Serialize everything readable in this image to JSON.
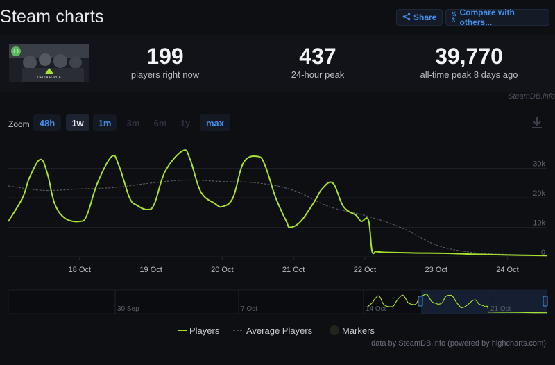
{
  "page": {
    "title": "Steam charts"
  },
  "toolbar": {
    "share_label": "Share",
    "compare_label": "Compare with others..."
  },
  "stats": {
    "current": {
      "value": "199",
      "label": "players right now"
    },
    "peak24": {
      "value": "437",
      "label": "24-hour peak"
    },
    "alltime": {
      "value": "39,770",
      "label": "all-time peak 8 days ago"
    }
  },
  "capsule": {
    "game_name": "DELTA FORCE"
  },
  "watermark": "SteamDB.info",
  "zoom": {
    "label": "Zoom",
    "options": [
      {
        "label": "48h",
        "state": "link"
      },
      {
        "label": "1w",
        "state": "selected"
      },
      {
        "label": "1m",
        "state": "link"
      },
      {
        "label": "3m",
        "state": "disabled"
      },
      {
        "label": "6m",
        "state": "disabled"
      },
      {
        "label": "1y",
        "state": "disabled"
      },
      {
        "label": "max",
        "state": "link"
      }
    ]
  },
  "legend": {
    "players": "Players",
    "average": "Average Players",
    "markers": "Markers"
  },
  "credit": "data by SteamDB.info (powered by highcharts.com)",
  "colors": {
    "players": "#a6e22e",
    "average": "#555a63",
    "accent": "#3f8fe8",
    "background": "#0e0f13"
  },
  "chart_data": {
    "type": "line",
    "title": "",
    "xlabel": "",
    "ylabel": "",
    "x_unit": "days since 17 Oct 00:00",
    "xlim": [
      0,
      7.55
    ],
    "ylim": [
      0,
      40000
    ],
    "x_ticks": [
      {
        "label": "18 Oct",
        "x": 1
      },
      {
        "label": "19 Oct",
        "x": 2
      },
      {
        "label": "20 Oct",
        "x": 3
      },
      {
        "label": "21 Oct",
        "x": 4
      },
      {
        "label": "22 Oct",
        "x": 5
      },
      {
        "label": "23 Oct",
        "x": 6
      },
      {
        "label": "24 Oct",
        "x": 7
      }
    ],
    "y_ticks": [
      {
        "label": "0",
        "y": 0
      },
      {
        "label": "10k",
        "y": 10000
      },
      {
        "label": "20k",
        "y": 20000
      },
      {
        "label": "30k",
        "y": 30000
      }
    ],
    "series": [
      {
        "name": "Players",
        "x": [
          0,
          0.2,
          0.3,
          0.45,
          0.55,
          0.65,
          0.8,
          1.0,
          1.1,
          1.25,
          1.45,
          1.55,
          1.7,
          1.8,
          1.95,
          2.05,
          2.2,
          2.45,
          2.55,
          2.7,
          2.9,
          3.0,
          3.15,
          3.3,
          3.5,
          3.6,
          3.75,
          3.9,
          3.95,
          4.1,
          4.3,
          4.4,
          4.55,
          4.7,
          4.88,
          4.95,
          5.05,
          5.1,
          5.15,
          5.18,
          5.3,
          5.7,
          6.1,
          6.5,
          7.0,
          7.55
        ],
        "values": [
          12000,
          20000,
          27000,
          33000,
          28000,
          18000,
          13000,
          12000,
          14000,
          25000,
          34000,
          31000,
          20000,
          17500,
          16000,
          18000,
          29000,
          36000,
          33000,
          22000,
          18000,
          17000,
          20000,
          32000,
          34000,
          31000,
          20000,
          12000,
          10000,
          12000,
          19000,
          23000,
          25000,
          17000,
          14000,
          12000,
          12500,
          2000,
          1800,
          1700,
          1500,
          1300,
          1200,
          900,
          600,
          400
        ]
      },
      {
        "name": "Average Players",
        "x": [
          0,
          0.5,
          1.0,
          1.5,
          2.0,
          2.5,
          3.0,
          3.5,
          4.0,
          4.5,
          5.0,
          5.5,
          6.0,
          6.5,
          7.0,
          7.55
        ],
        "values": [
          24000,
          22500,
          23000,
          23500,
          25000,
          26000,
          25500,
          25000,
          22500,
          17000,
          14000,
          10000,
          4000,
          1500,
          800,
          500
        ]
      }
    ],
    "navigator": {
      "x_ticks": [
        "30 Sep",
        "7 Oct",
        "14 Oct",
        "21 Oct"
      ],
      "selected_range": [
        "17 Oct",
        "24 Oct"
      ]
    }
  }
}
